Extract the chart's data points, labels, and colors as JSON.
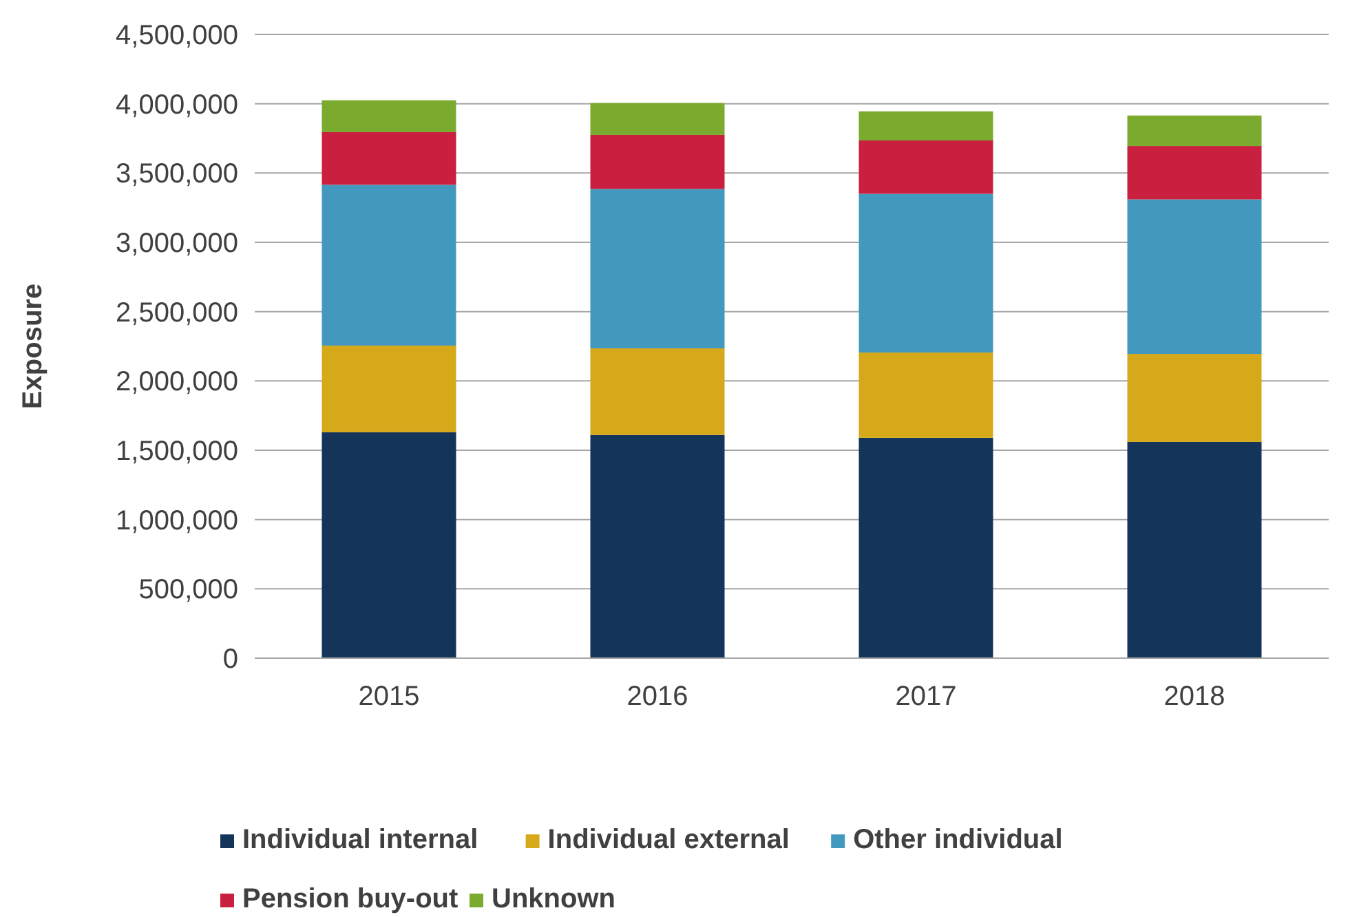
{
  "chart_data": {
    "type": "bar",
    "stacked": true,
    "ylabel": "Exposure",
    "categories": [
      "2015",
      "2016",
      "2017",
      "2018"
    ],
    "series": [
      {
        "name": "Individual internal",
        "color": "#14345a",
        "values": [
          1630000,
          1610000,
          1590000,
          1560000
        ]
      },
      {
        "name": "Individual external",
        "color": "#d6a91a",
        "values": [
          625000,
          625000,
          615000,
          635000
        ]
      },
      {
        "name": "Other individual",
        "color": "#4299bd",
        "values": [
          1160000,
          1150000,
          1145000,
          1115000
        ]
      },
      {
        "name": "Pension buy-out",
        "color": "#c9203f",
        "values": [
          380000,
          390000,
          385000,
          385000
        ]
      },
      {
        "name": "Unknown",
        "color": "#7aab2e",
        "values": [
          230000,
          230000,
          210000,
          220000
        ]
      }
    ],
    "ylim": [
      0,
      4500000
    ],
    "yticks": [
      {
        "value": 0,
        "label": "0"
      },
      {
        "value": 500000,
        "label": "500,000"
      },
      {
        "value": 1000000,
        "label": "1,000,000"
      },
      {
        "value": 1500000,
        "label": "1,500,000"
      },
      {
        "value": 2000000,
        "label": "2,000,000"
      },
      {
        "value": 2500000,
        "label": "2,500,000"
      },
      {
        "value": 3000000,
        "label": "3,000,000"
      },
      {
        "value": 3500000,
        "label": "3,500,000"
      },
      {
        "value": 4000000,
        "label": "4,000,000"
      },
      {
        "value": 4500000,
        "label": "4,500,000"
      }
    ],
    "grid": "y",
    "legend": "bottom"
  }
}
